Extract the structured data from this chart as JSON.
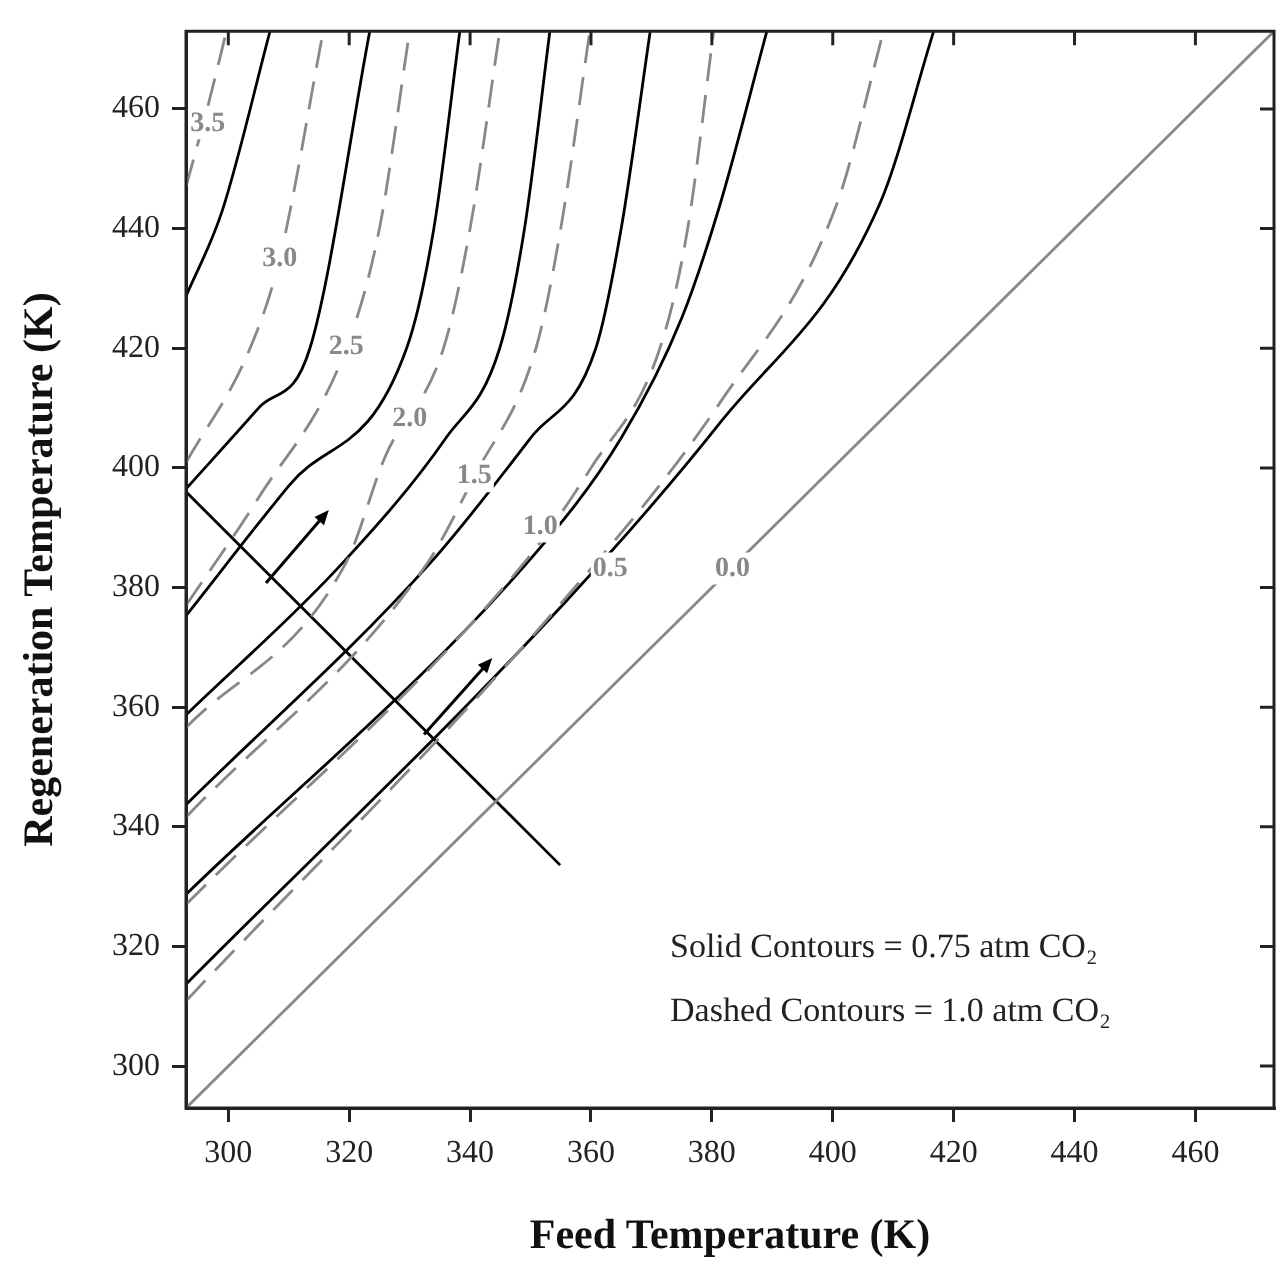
{
  "chart_data": {
    "type": "line",
    "xlabel": "Feed Temperature (K)",
    "ylabel": "Regeneration Temperature (K)",
    "xlim": [
      293,
      473
    ],
    "ylim": [
      293,
      473
    ],
    "xticks": [
      300,
      320,
      340,
      360,
      380,
      400,
      420,
      440,
      460
    ],
    "yticks": [
      300,
      320,
      340,
      360,
      380,
      400,
      420,
      440,
      460
    ],
    "legend": false,
    "marker": "none",
    "series": [
      {
        "type": "line",
        "color": "#888888",
        "line_style": "dashed",
        "x": [
          293,
          296.5,
          299.7
        ],
        "values": [
          447,
          460,
          473
        ]
      },
      {
        "type": "line",
        "color": "#000000",
        "line_style": "solid",
        "x": [
          293,
          299,
          306.9
        ],
        "values": [
          428.7,
          443,
          473
        ]
      },
      {
        "type": "line",
        "color": "#888888",
        "line_style": "dashed",
        "x": [
          293,
          303.6,
          308.5,
          315.7
        ],
        "values": [
          400.9,
          420,
          435,
          473
        ]
      },
      {
        "type": "line",
        "color": "#000000",
        "line_style": "solid",
        "x": [
          293,
          305,
          313.5,
          323.4
        ],
        "values": [
          396.5,
          410,
          420,
          473
        ]
      },
      {
        "type": "line",
        "color": "#888888",
        "line_style": "dashed",
        "x": [
          293,
          305,
          319.5,
          325,
          330
        ],
        "values": [
          377,
          395,
          420,
          440,
          473
        ]
      },
      {
        "type": "line",
        "color": "#000000",
        "line_style": "solid",
        "x": [
          293,
          310,
          329.5,
          334,
          338.3
        ],
        "values": [
          375.3,
          397,
          420,
          440,
          473
        ]
      },
      {
        "type": "line",
        "color": "#888888",
        "line_style": "dashed",
        "x": [
          293,
          319.5,
          326,
          335.6,
          340,
          344.9
        ],
        "values": [
          356.6,
          384.2,
          402,
          420,
          440,
          473
        ]
      },
      {
        "type": "line",
        "color": "#000000",
        "line_style": "solid",
        "x": [
          293,
          319,
          336,
          344.9,
          349,
          353.2
        ],
        "values": [
          358.7,
          384.2,
          405,
          420,
          440,
          473
        ]
      },
      {
        "type": "line",
        "color": "#888888",
        "line_style": "dashed",
        "x": [
          293,
          333,
          340.7,
          350.9,
          355,
          359.8
        ],
        "values": [
          341.6,
          384.2,
          398.6,
          420,
          440,
          473
        ]
      },
      {
        "type": "line",
        "color": "#000000",
        "line_style": "solid",
        "x": [
          293,
          333.5,
          350,
          360.8,
          365,
          369.8
        ],
        "values": [
          343.7,
          384.2,
          405,
          420,
          440,
          473
        ]
      },
      {
        "type": "line",
        "color": "#888888",
        "line_style": "dashed",
        "x": [
          293,
          349,
          360,
          371.4,
          376,
          380.3
        ],
        "values": [
          327,
          384.2,
          400,
          420,
          440,
          473
        ]
      },
      {
        "type": "line",
        "color": "#000000",
        "line_style": "solid",
        "x": [
          293,
          349.5,
          365,
          375,
          381.4,
          389.1
        ],
        "values": [
          328.7,
          384.2,
          405,
          425,
          444.2,
          473
        ]
      },
      {
        "type": "line",
        "color": "#888888",
        "line_style": "dashed",
        "x": [
          293,
          355,
          381.4,
          400.7,
          408.4
        ],
        "values": [
          310.9,
          377.3,
          411,
          444.2,
          473
        ]
      },
      {
        "type": "line",
        "color": "#000000",
        "line_style": "solid",
        "x": [
          293,
          355.5,
          381.4,
          407.8,
          416.7
        ],
        "values": [
          313.7,
          377.3,
          407.6,
          444.2,
          473
        ]
      },
      {
        "type": "line",
        "color": "#888888",
        "line_style": "solid",
        "x": [
          293,
          473
        ],
        "values": [
          293,
          473
        ]
      },
      {
        "type": "line",
        "color": "#000000",
        "line_style": "solid",
        "x": [
          293,
          354.9
        ],
        "values": [
          396,
          333.6
        ]
      }
    ],
    "annotations": [
      {
        "text": "3.5",
        "x": 296.6,
        "y": 457.6
      },
      {
        "text": "3.0",
        "x": 308.5,
        "y": 434.9
      },
      {
        "text": "2.5",
        "x": 319.5,
        "y": 420.2
      },
      {
        "text": "2.0",
        "x": 330,
        "y": 408.2
      },
      {
        "text": "1.5",
        "x": 340.7,
        "y": 398.6
      },
      {
        "text": "1.0",
        "x": 351.6,
        "y": 390.2
      },
      {
        "text": "0.5",
        "x": 363.2,
        "y": 383.2
      },
      {
        "text": "0.0",
        "x": 383.4,
        "y": 383.2
      },
      "Solid Contours = 0.75 atm CO₂",
      "Dashed Contours = 1.0 atm CO₂"
    ]
  }
}
